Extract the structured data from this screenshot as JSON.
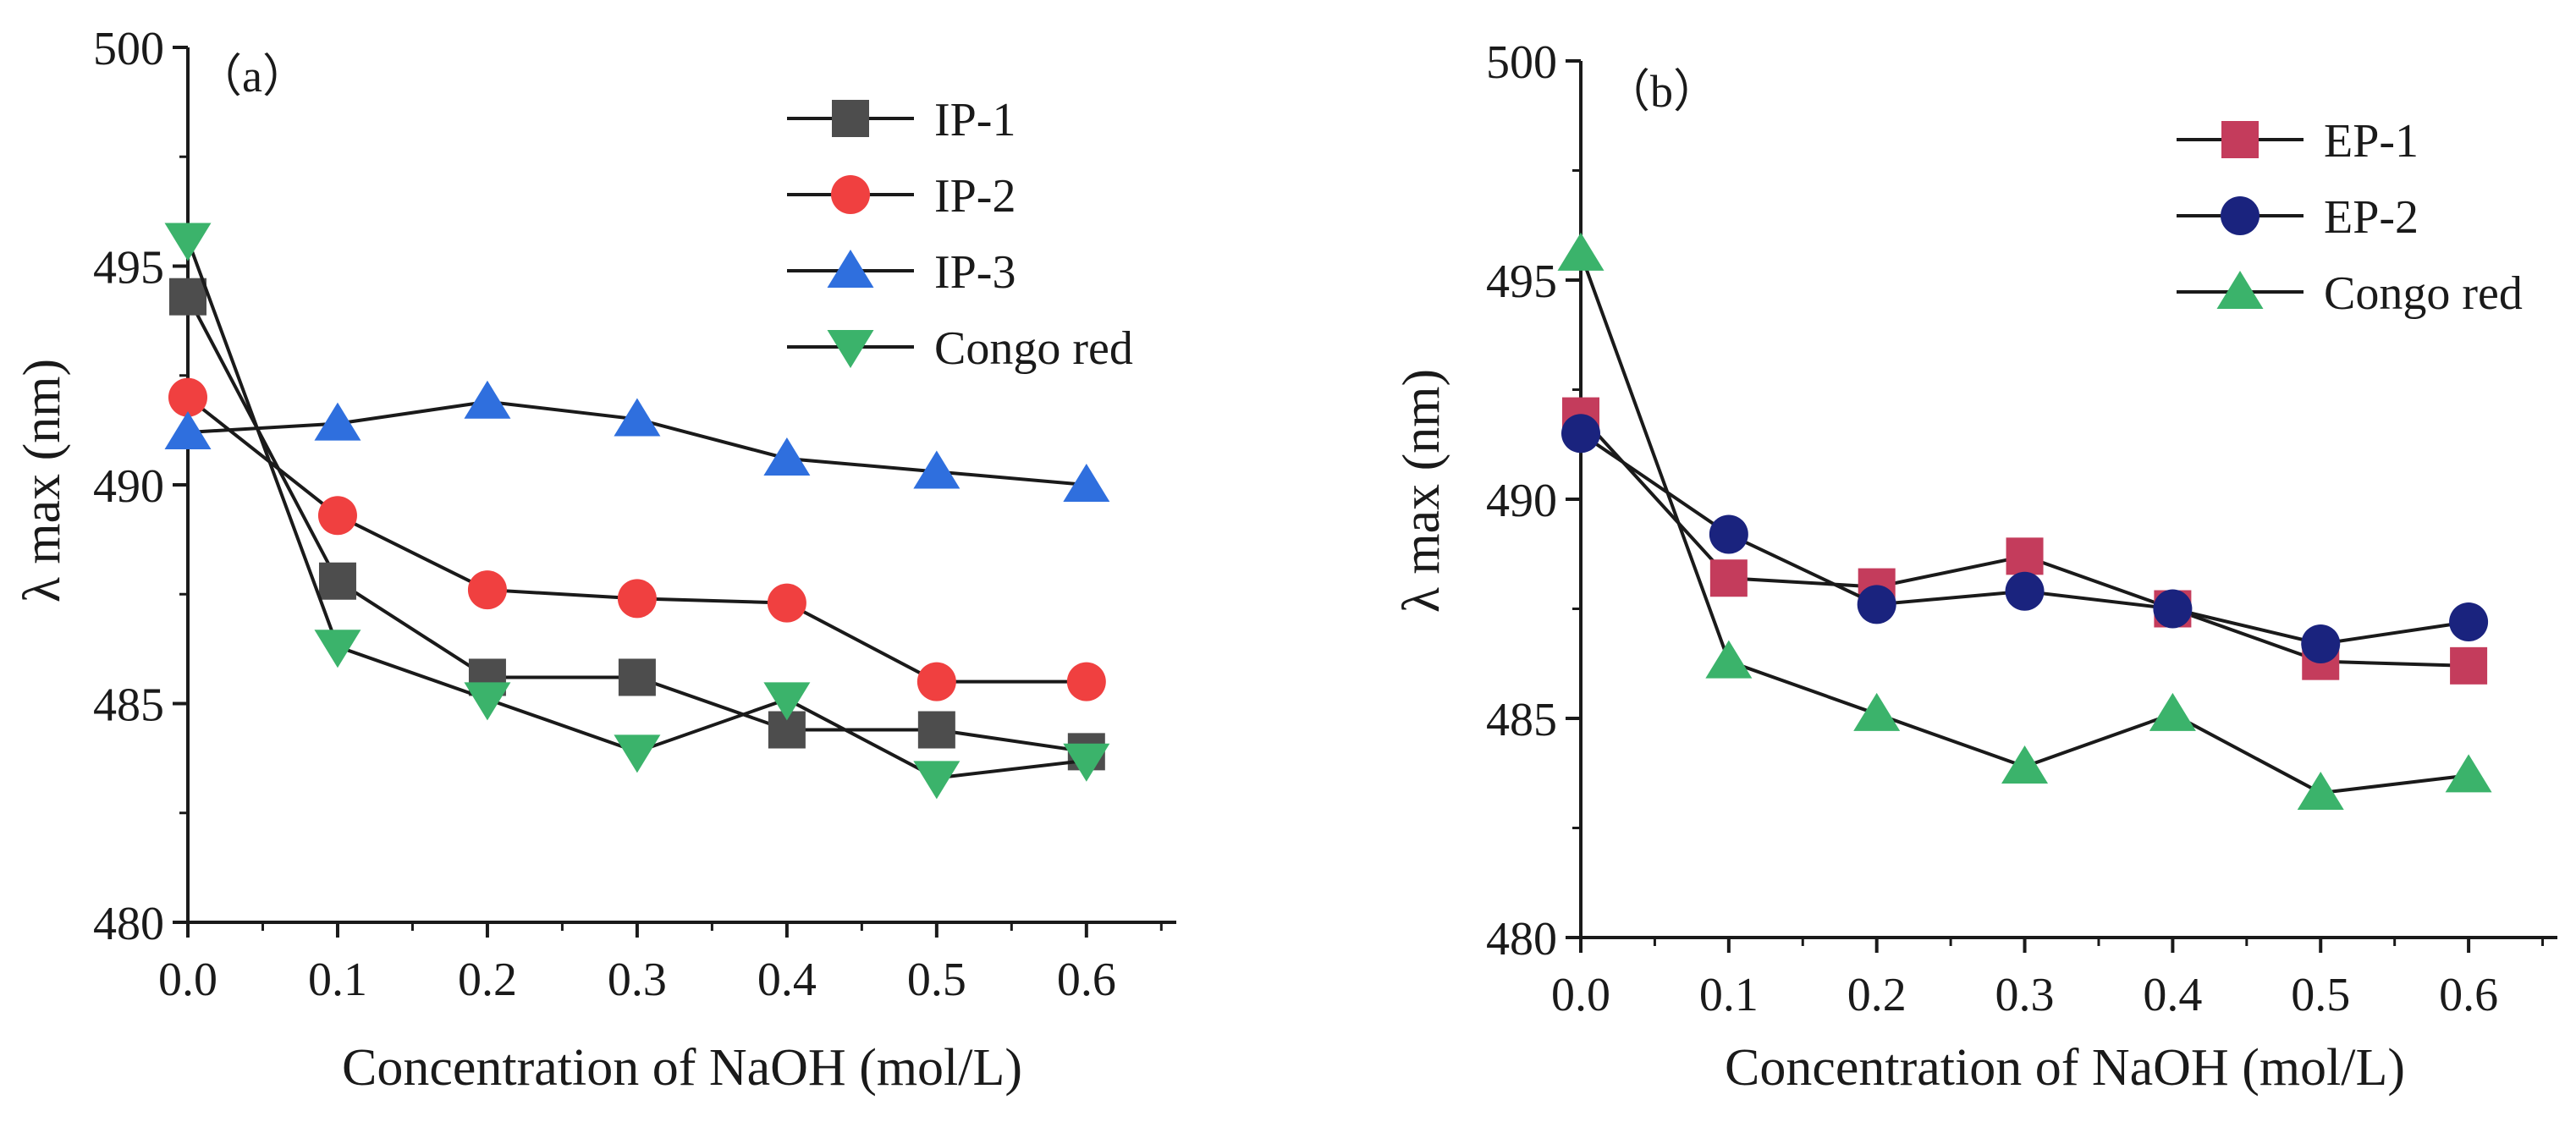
{
  "chart_data": [
    {
      "type": "line",
      "panel_label": "（a）",
      "xlabel": "Concentration of NaOH (mol/L)",
      "ylabel": "λ max (nm)",
      "xlim": [
        0,
        0.66
      ],
      "ylim": [
        480,
        500
      ],
      "xticks": [
        0.0,
        0.1,
        0.2,
        0.3,
        0.4,
        0.5,
        0.6
      ],
      "xtick_labels": [
        "0.0",
        "0.1",
        "0.2",
        "0.3",
        "0.4",
        "0.5",
        "0.6"
      ],
      "yticks": [
        480,
        485,
        490,
        495,
        500
      ],
      "ytick_labels": [
        "480",
        "485",
        "490",
        "495",
        "500"
      ],
      "legend_position": "top-right",
      "x": [
        0.0,
        0.1,
        0.2,
        0.3,
        0.4,
        0.5,
        0.6
      ],
      "series": [
        {
          "name": "IP-1",
          "marker": "square",
          "color": "#4d4d4d",
          "values": [
            494.3,
            487.8,
            485.6,
            485.6,
            484.4,
            484.4,
            483.9
          ]
        },
        {
          "name": "IP-2",
          "marker": "circle",
          "color": "#f04040",
          "values": [
            492.0,
            489.3,
            487.6,
            487.4,
            487.3,
            485.5,
            485.5
          ]
        },
        {
          "name": "IP-3",
          "marker": "triangle-up",
          "color": "#2f6fde",
          "values": [
            491.2,
            491.4,
            491.9,
            491.5,
            490.6,
            490.3,
            490.0
          ]
        },
        {
          "name": "Congo red",
          "marker": "triangle-down",
          "color": "#3bb36b",
          "values": [
            495.6,
            486.3,
            485.1,
            483.9,
            485.1,
            483.3,
            483.7
          ]
        }
      ]
    },
    {
      "type": "line",
      "panel_label": "（b）",
      "xlabel": "Concentration of NaOH (mol/L)",
      "ylabel": "λ max (nm)",
      "xlim": [
        0,
        0.66
      ],
      "ylim": [
        480,
        500
      ],
      "xticks": [
        0.0,
        0.1,
        0.2,
        0.3,
        0.4,
        0.5,
        0.6
      ],
      "xtick_labels": [
        "0.0",
        "0.1",
        "0.2",
        "0.3",
        "0.4",
        "0.5",
        "0.6"
      ],
      "yticks": [
        480,
        485,
        490,
        495,
        500
      ],
      "ytick_labels": [
        "480",
        "485",
        "490",
        "495",
        "500"
      ],
      "legend_position": "top-right",
      "x": [
        0.0,
        0.1,
        0.2,
        0.3,
        0.4,
        0.5,
        0.6
      ],
      "series": [
        {
          "name": "EP-1",
          "marker": "square",
          "color": "#c43c5c",
          "values": [
            491.9,
            488.2,
            488.0,
            488.7,
            487.5,
            486.3,
            486.2
          ]
        },
        {
          "name": "EP-2",
          "marker": "circle",
          "color": "#1a237e",
          "values": [
            491.5,
            489.2,
            487.6,
            487.9,
            487.5,
            486.7,
            487.2
          ]
        },
        {
          "name": "Congo red",
          "marker": "triangle-up",
          "color": "#3bb36b",
          "values": [
            495.6,
            486.3,
            485.1,
            483.9,
            485.1,
            483.3,
            483.7
          ]
        }
      ]
    }
  ]
}
